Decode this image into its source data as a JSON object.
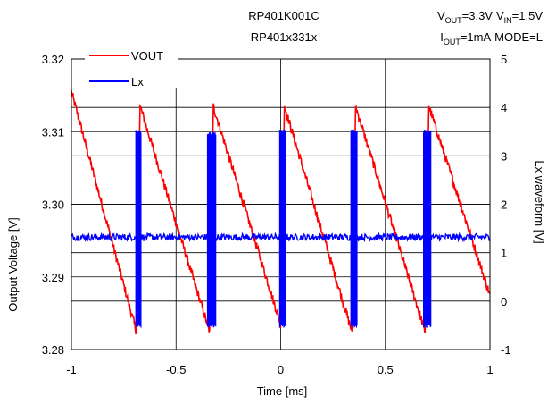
{
  "chart_data": {
    "type": "line",
    "title": [
      "RP401K001C",
      "RP401x331x"
    ],
    "conditions": {
      "line1": {
        "vout_sym": "V",
        "vout_sub": "OUT",
        "vout_val": "=3.3V",
        "vin_sym": "V",
        "vin_sub": "IN",
        "vin_val": "=1.5V"
      },
      "line2": {
        "iout_sym": "I",
        "iout_sub": "OUT",
        "iout_val": "=1mA",
        "mode": "MODE=L"
      }
    },
    "xlabel": "Time [ms]",
    "ylabel_left": "Output Voltage [V]",
    "ylabel_right": "Lx waveform [V]",
    "xlim": [
      -1,
      1
    ],
    "x_ticks": [
      "-1",
      "-0.5",
      "0",
      "0.5",
      "1"
    ],
    "x_tick_values": [
      -1,
      -0.5,
      0,
      0.5,
      1
    ],
    "ylim_left": [
      3.28,
      3.32
    ],
    "left_ticks": [
      "3.28",
      "3.29",
      "3.30",
      "3.31",
      "3.32"
    ],
    "left_tick_values": [
      3.28,
      3.29,
      3.3,
      3.31,
      3.32
    ],
    "ylim_right": [
      -1,
      5
    ],
    "right_ticks": [
      "-1",
      "0",
      "1",
      "2",
      "3",
      "4",
      "5"
    ],
    "right_tick_values": [
      -1,
      0,
      1,
      2,
      3,
      4,
      5
    ],
    "grid": true,
    "legend_position": "top-left",
    "series": [
      {
        "name": "VOUT",
        "axis": "left",
        "color": "#ff0000",
        "points": [
          [
            -1.0,
            3.3155
          ],
          [
            -0.69,
            3.2825
          ],
          [
            -0.672,
            3.3135
          ],
          [
            -0.34,
            3.2825
          ],
          [
            -0.322,
            3.3135
          ],
          [
            0.0,
            3.2835
          ],
          [
            0.018,
            3.3135
          ],
          [
            0.34,
            3.2825
          ],
          [
            0.358,
            3.3135
          ],
          [
            0.69,
            3.2825
          ],
          [
            0.708,
            3.3135
          ],
          [
            1.0,
            3.2875
          ]
        ]
      },
      {
        "name": "Lx",
        "axis": "right",
        "color": "#0000ff",
        "baseline": 1.32,
        "bursts": [
          {
            "x": -0.68,
            "width": 0.025,
            "high": 3.55,
            "low": -0.55
          },
          {
            "x": -0.33,
            "width": 0.04,
            "high": 3.5,
            "low": -0.55
          },
          {
            "x": 0.01,
            "width": 0.03,
            "high": 3.55,
            "low": -0.55
          },
          {
            "x": 0.35,
            "width": 0.03,
            "high": 3.55,
            "low": -0.55
          },
          {
            "x": 0.7,
            "width": 0.035,
            "high": 3.55,
            "low": -0.55
          }
        ]
      }
    ]
  }
}
